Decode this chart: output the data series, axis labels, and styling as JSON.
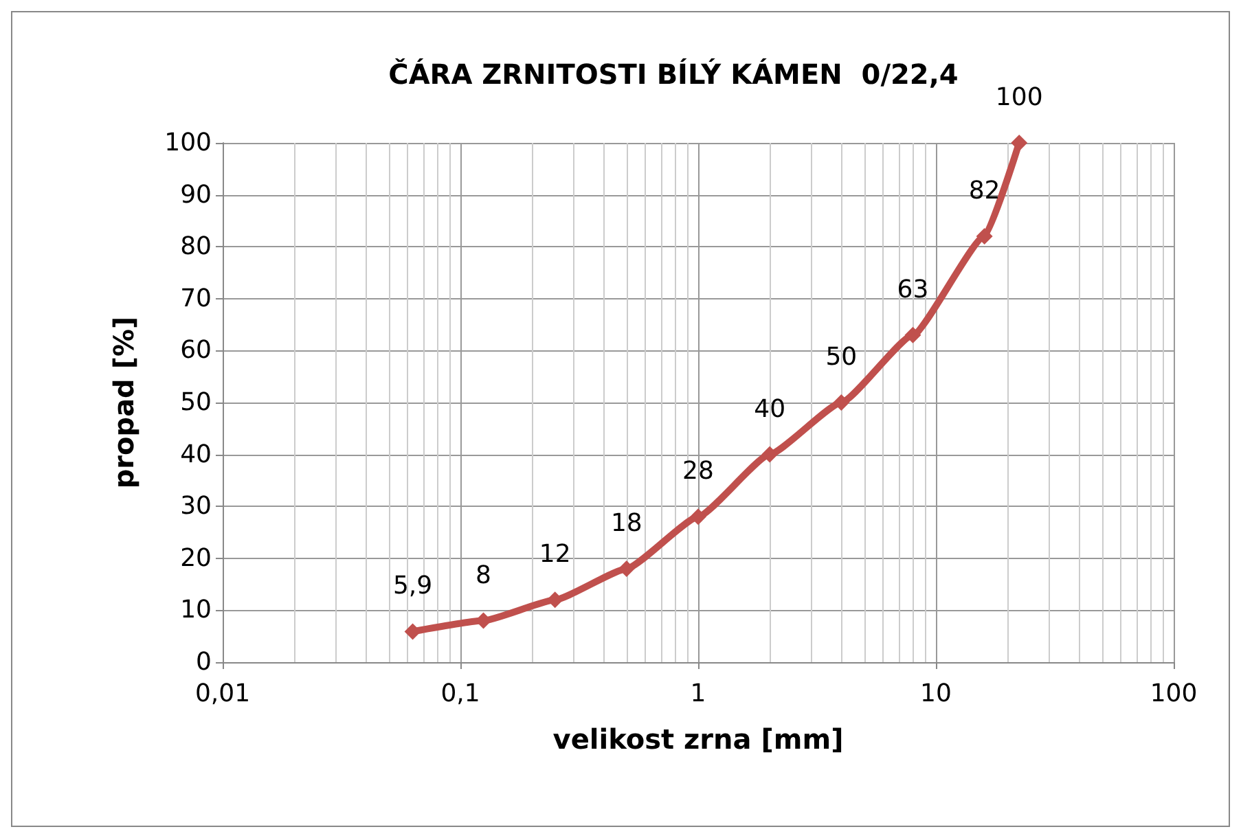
{
  "chart_data": {
    "type": "line",
    "title": "ČÁRA ZRNITOSTI BÍLÝ KÁMEN  0/22,4",
    "xlabel": "velikost zrna [mm]",
    "ylabel": "propad [%]",
    "x": [
      0.063,
      0.125,
      0.25,
      0.5,
      1,
      2,
      4,
      8,
      16,
      22.4
    ],
    "series": [
      {
        "color": "#c0504d",
        "values": [
          5.9,
          8,
          12,
          18,
          28,
          40,
          50,
          63,
          82,
          100
        ],
        "value_labels": [
          "5,9",
          "8",
          "12",
          "18",
          "28",
          "40",
          "50",
          "63",
          "82",
          "100"
        ]
      }
    ],
    "log": "x",
    "xlim": [
      0.01,
      100
    ],
    "xticks": [
      {
        "value": 0.01,
        "label": "0,01"
      },
      {
        "value": 0.1,
        "label": "0,1"
      },
      1,
      10,
      100
    ],
    "ylim": [
      0,
      100
    ],
    "yticks": [
      0,
      10,
      20,
      30,
      40,
      50,
      60,
      70,
      80,
      90,
      100
    ],
    "grid": true,
    "marker": "diamond",
    "line_style": "solid"
  }
}
